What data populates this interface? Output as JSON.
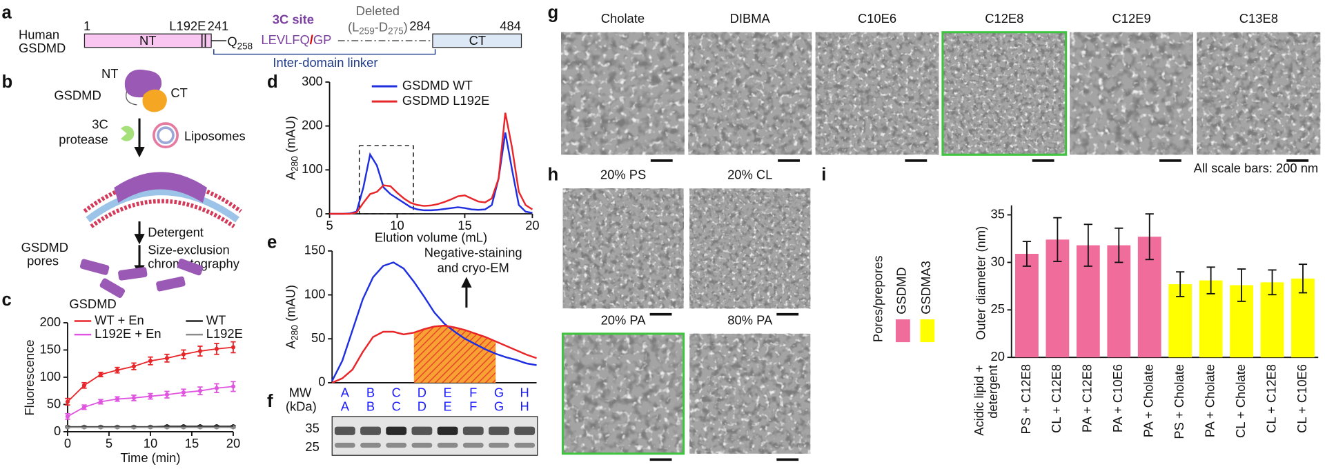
{
  "panel_labels": [
    "a",
    "b",
    "c",
    "d",
    "e",
    "f",
    "g",
    "h",
    "i"
  ],
  "panel_a": {
    "species": "Human",
    "protein": "GSDMD",
    "residue_start": "1",
    "mutation": "L192E",
    "nt_end": "241",
    "nt_label": "NT",
    "q": "Q",
    "q_index": "258",
    "site_title": "3C site",
    "site_seq_left": "LEVLFQ",
    "site_cut": "/",
    "site_seq_right": "GP",
    "deleted_title": "Deleted",
    "deleted_range": [
      "(L",
      "259",
      "-D",
      "275",
      ")"
    ],
    "ct_start": "284",
    "ct_label": "CT",
    "residue_end": "484",
    "linker": "Inter-domain linker"
  },
  "panel_b": {
    "nt": "NT",
    "gsdmd": "GSDMD",
    "ct": "CT",
    "protease": [
      "3C",
      "protease"
    ],
    "liposomes": "Liposomes",
    "detergent": "Detergent",
    "sec": [
      "Size-exclusion",
      "chromatography"
    ],
    "pores": [
      "GSDMD",
      "pores"
    ]
  },
  "chart_data": [
    {
      "type": "line",
      "title": "GSDMD",
      "x": [
        0,
        2,
        4,
        6,
        8,
        10,
        12,
        14,
        16,
        18,
        20
      ],
      "series": [
        {
          "name": "WT + En",
          "color": "#e8262a",
          "values": [
            55,
            85,
            105,
            113,
            120,
            130,
            135,
            142,
            148,
            152,
            155
          ],
          "errors": [
            6,
            5,
            4,
            5,
            6,
            7,
            7,
            8,
            9,
            10,
            10
          ]
        },
        {
          "name": "WT",
          "color": "#222222",
          "values": [
            9,
            9,
            9,
            9,
            9,
            9,
            10,
            10,
            10,
            10,
            10
          ],
          "errors": [
            1,
            1,
            1,
            1,
            1,
            1,
            1,
            1,
            1,
            1,
            1
          ]
        },
        {
          "name": "L192E + En",
          "color": "#e055e0",
          "values": [
            28,
            45,
            55,
            60,
            62,
            65,
            68,
            72,
            75,
            80,
            83
          ],
          "errors": [
            5,
            4,
            4,
            4,
            5,
            5,
            6,
            6,
            7,
            8,
            9
          ]
        },
        {
          "name": "L192E",
          "color": "#8a8a8a",
          "values": [
            8,
            8,
            8,
            8,
            8,
            8,
            8,
            8,
            8,
            8,
            8
          ],
          "errors": [
            1,
            1,
            1,
            1,
            1,
            1,
            1,
            1,
            1,
            1,
            1
          ]
        }
      ],
      "xlim": [
        0,
        20
      ],
      "ylim": [
        0,
        200
      ],
      "xticks": [
        0,
        5,
        10,
        15,
        20
      ],
      "yticks": [
        0,
        50,
        100,
        150,
        200
      ],
      "xlabel": "Time (min)",
      "ylabel": "Fluorescence"
    },
    {
      "type": "line",
      "x": [
        5,
        5.5,
        6,
        6.5,
        7,
        7.5,
        8,
        8.5,
        9,
        9.5,
        10,
        10.5,
        11,
        11.5,
        12,
        12.5,
        13,
        13.5,
        14,
        14.5,
        15,
        15.5,
        16,
        16.5,
        17,
        17.5,
        18,
        18.5,
        19,
        19.5,
        20
      ],
      "series": [
        {
          "name": "GSDMD WT",
          "color": "#1f2fe0",
          "values": [
            0,
            0,
            0,
            1,
            5,
            60,
            135,
            110,
            60,
            45,
            35,
            25,
            15,
            10,
            8,
            8,
            9,
            11,
            13,
            15,
            13,
            10,
            9,
            10,
            20,
            80,
            185,
            100,
            20,
            5,
            2
          ]
        },
        {
          "name": "GSDMD L192E",
          "color": "#e8262a",
          "values": [
            0,
            0,
            0,
            0,
            3,
            25,
            45,
            50,
            65,
            63,
            48,
            35,
            25,
            20,
            18,
            19,
            22,
            27,
            33,
            40,
            42,
            35,
            28,
            26,
            35,
            80,
            230,
            150,
            50,
            20,
            10
          ]
        }
      ],
      "xlim": [
        5,
        20
      ],
      "ylim": [
        0,
        300
      ],
      "xticks": [
        5,
        10,
        15,
        20
      ],
      "yticks": [
        0,
        100,
        200,
        300
      ],
      "xlabel": "Elution volume (mL)",
      "ylabel": {
        "main": "A",
        "sub": "280",
        "unit": " (mAU)"
      },
      "highlight": {
        "x": [
          7.2,
          11.2
        ],
        "y": [
          0,
          155
        ]
      }
    },
    {
      "type": "line",
      "x": [
        7.2,
        7.4,
        7.6,
        7.8,
        8.0,
        8.2,
        8.4,
        8.6,
        8.8,
        9.0,
        9.2,
        9.4,
        9.6,
        9.8,
        10.0,
        10.2,
        10.4,
        10.6,
        10.8,
        11.0,
        11.2
      ],
      "series": [
        {
          "color": "#1f2fe0",
          "values": [
            2,
            25,
            60,
            95,
            120,
            133,
            137,
            130,
            115,
            98,
            80,
            67,
            58,
            50,
            44,
            38,
            33,
            29,
            26,
            22,
            20
          ]
        },
        {
          "color": "#e8262a",
          "values": [
            0,
            5,
            15,
            35,
            52,
            58,
            58,
            55,
            57,
            61,
            64,
            65,
            63,
            60,
            56,
            52,
            47,
            42,
            37,
            32,
            28
          ]
        }
      ],
      "xlim": [
        7.2,
        11.2
      ],
      "ylim": [
        0,
        150
      ],
      "yticks": [
        0,
        50,
        100,
        150
      ],
      "ylabel": {
        "main": "A",
        "sub": "280",
        "unit": " (mAU)"
      },
      "highlight": {
        "x": [
          8.8,
          10.4
        ]
      },
      "annotation": [
        "Negative-staining",
        "and cryo-EM"
      ]
    },
    {
      "type": "bar",
      "categories": [
        "PS + C12E8",
        "CL + C12E8",
        "PA + C12E8",
        "PA + C10E6",
        "PA + Cholate",
        "PS + Cholate",
        "PA + Cholate",
        "CL + Cholate",
        "CL + C12E8",
        "CL + C10E6"
      ],
      "values": [
        30.9,
        32.4,
        31.8,
        31.8,
        32.7,
        27.7,
        28.1,
        27.6,
        27.9,
        28.3
      ],
      "errors": [
        1.3,
        2.3,
        2.2,
        1.8,
        2.4,
        1.3,
        1.4,
        1.7,
        1.3,
        1.5
      ],
      "colors": [
        "#f06c9b",
        "#f06c9b",
        "#f06c9b",
        "#f06c9b",
        "#f06c9b",
        "#ffff00",
        "#ffff00",
        "#ffff00",
        "#ffff00",
        "#ffff00"
      ],
      "ylim": [
        20,
        36
      ],
      "yticks": [
        20,
        25,
        30,
        35
      ],
      "ylabel": "Outer diameter (nm)",
      "xlabel": [
        "Acidic lipid +",
        "detergent"
      ],
      "legend": {
        "title": "Pores/prepores",
        "entries": [
          {
            "name": "GSDMD",
            "color": "#f06c9b"
          },
          {
            "name": "GSDMA3",
            "color": "#ffff00"
          }
        ]
      }
    }
  ],
  "panel_f": {
    "mw_label": [
      "MW",
      "(kDa)"
    ],
    "fraction_rows": [
      [
        "A",
        "B",
        "C",
        "D",
        "E",
        "F",
        "G",
        "H"
      ],
      [
        "A",
        "B",
        "C",
        "D",
        "E",
        "F",
        "G",
        "H"
      ]
    ],
    "mw_marks": [
      "35",
      "25"
    ]
  },
  "panel_g": {
    "images": [
      {
        "label": "Cholate",
        "highlight": false
      },
      {
        "label": "DIBMA",
        "highlight": false
      },
      {
        "label": "C10E6",
        "highlight": false
      },
      {
        "label": "C12E8",
        "highlight": true
      },
      {
        "label": "C12E9",
        "highlight": false
      },
      {
        "label": "C13E8",
        "highlight": false
      }
    ],
    "scale_note": "All scale bars: 200 nm"
  },
  "panel_h": {
    "images": [
      {
        "label": "20% PS",
        "highlight": false
      },
      {
        "label": "20% CL",
        "highlight": false
      },
      {
        "label": "20% PA",
        "highlight": true
      },
      {
        "label": "80% PA",
        "highlight": false
      }
    ]
  }
}
